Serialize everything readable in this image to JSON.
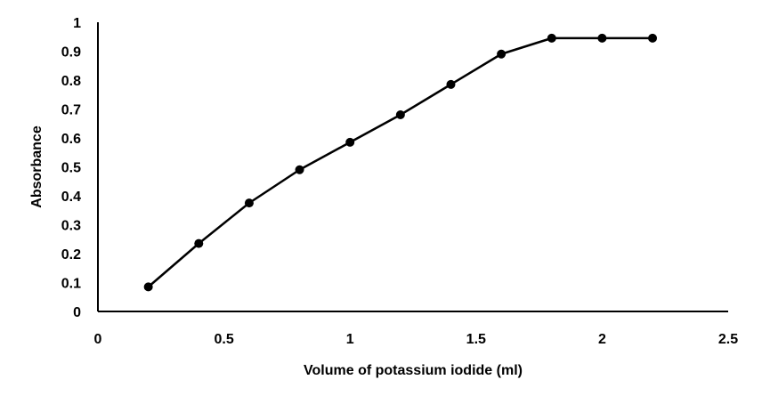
{
  "chart_data": {
    "type": "line",
    "title": "",
    "xlabel": "Volume of potassium iodide (ml)",
    "ylabel": "Absorbance",
    "xlim": [
      0,
      2.5
    ],
    "ylim": [
      0,
      1
    ],
    "x_ticks": [
      "0",
      "0.5",
      "1",
      "1.5",
      "2",
      "2.5"
    ],
    "y_ticks": [
      "0",
      "0.1",
      "0.2",
      "0.3",
      "0.4",
      "0.5",
      "0.6",
      "0.7",
      "0.8",
      "0.9",
      "1"
    ],
    "grid": false,
    "legend": "none",
    "series": [
      {
        "x": [
          0.2,
          0.4,
          0.6,
          0.8,
          1.0,
          1.2,
          1.4,
          1.6,
          1.8,
          2.0,
          2.2
        ],
        "y": [
          0.085,
          0.235,
          0.375,
          0.49,
          0.585,
          0.68,
          0.785,
          0.89,
          0.945,
          0.945,
          0.945
        ],
        "color": "#000000",
        "marker": "circle"
      }
    ]
  }
}
